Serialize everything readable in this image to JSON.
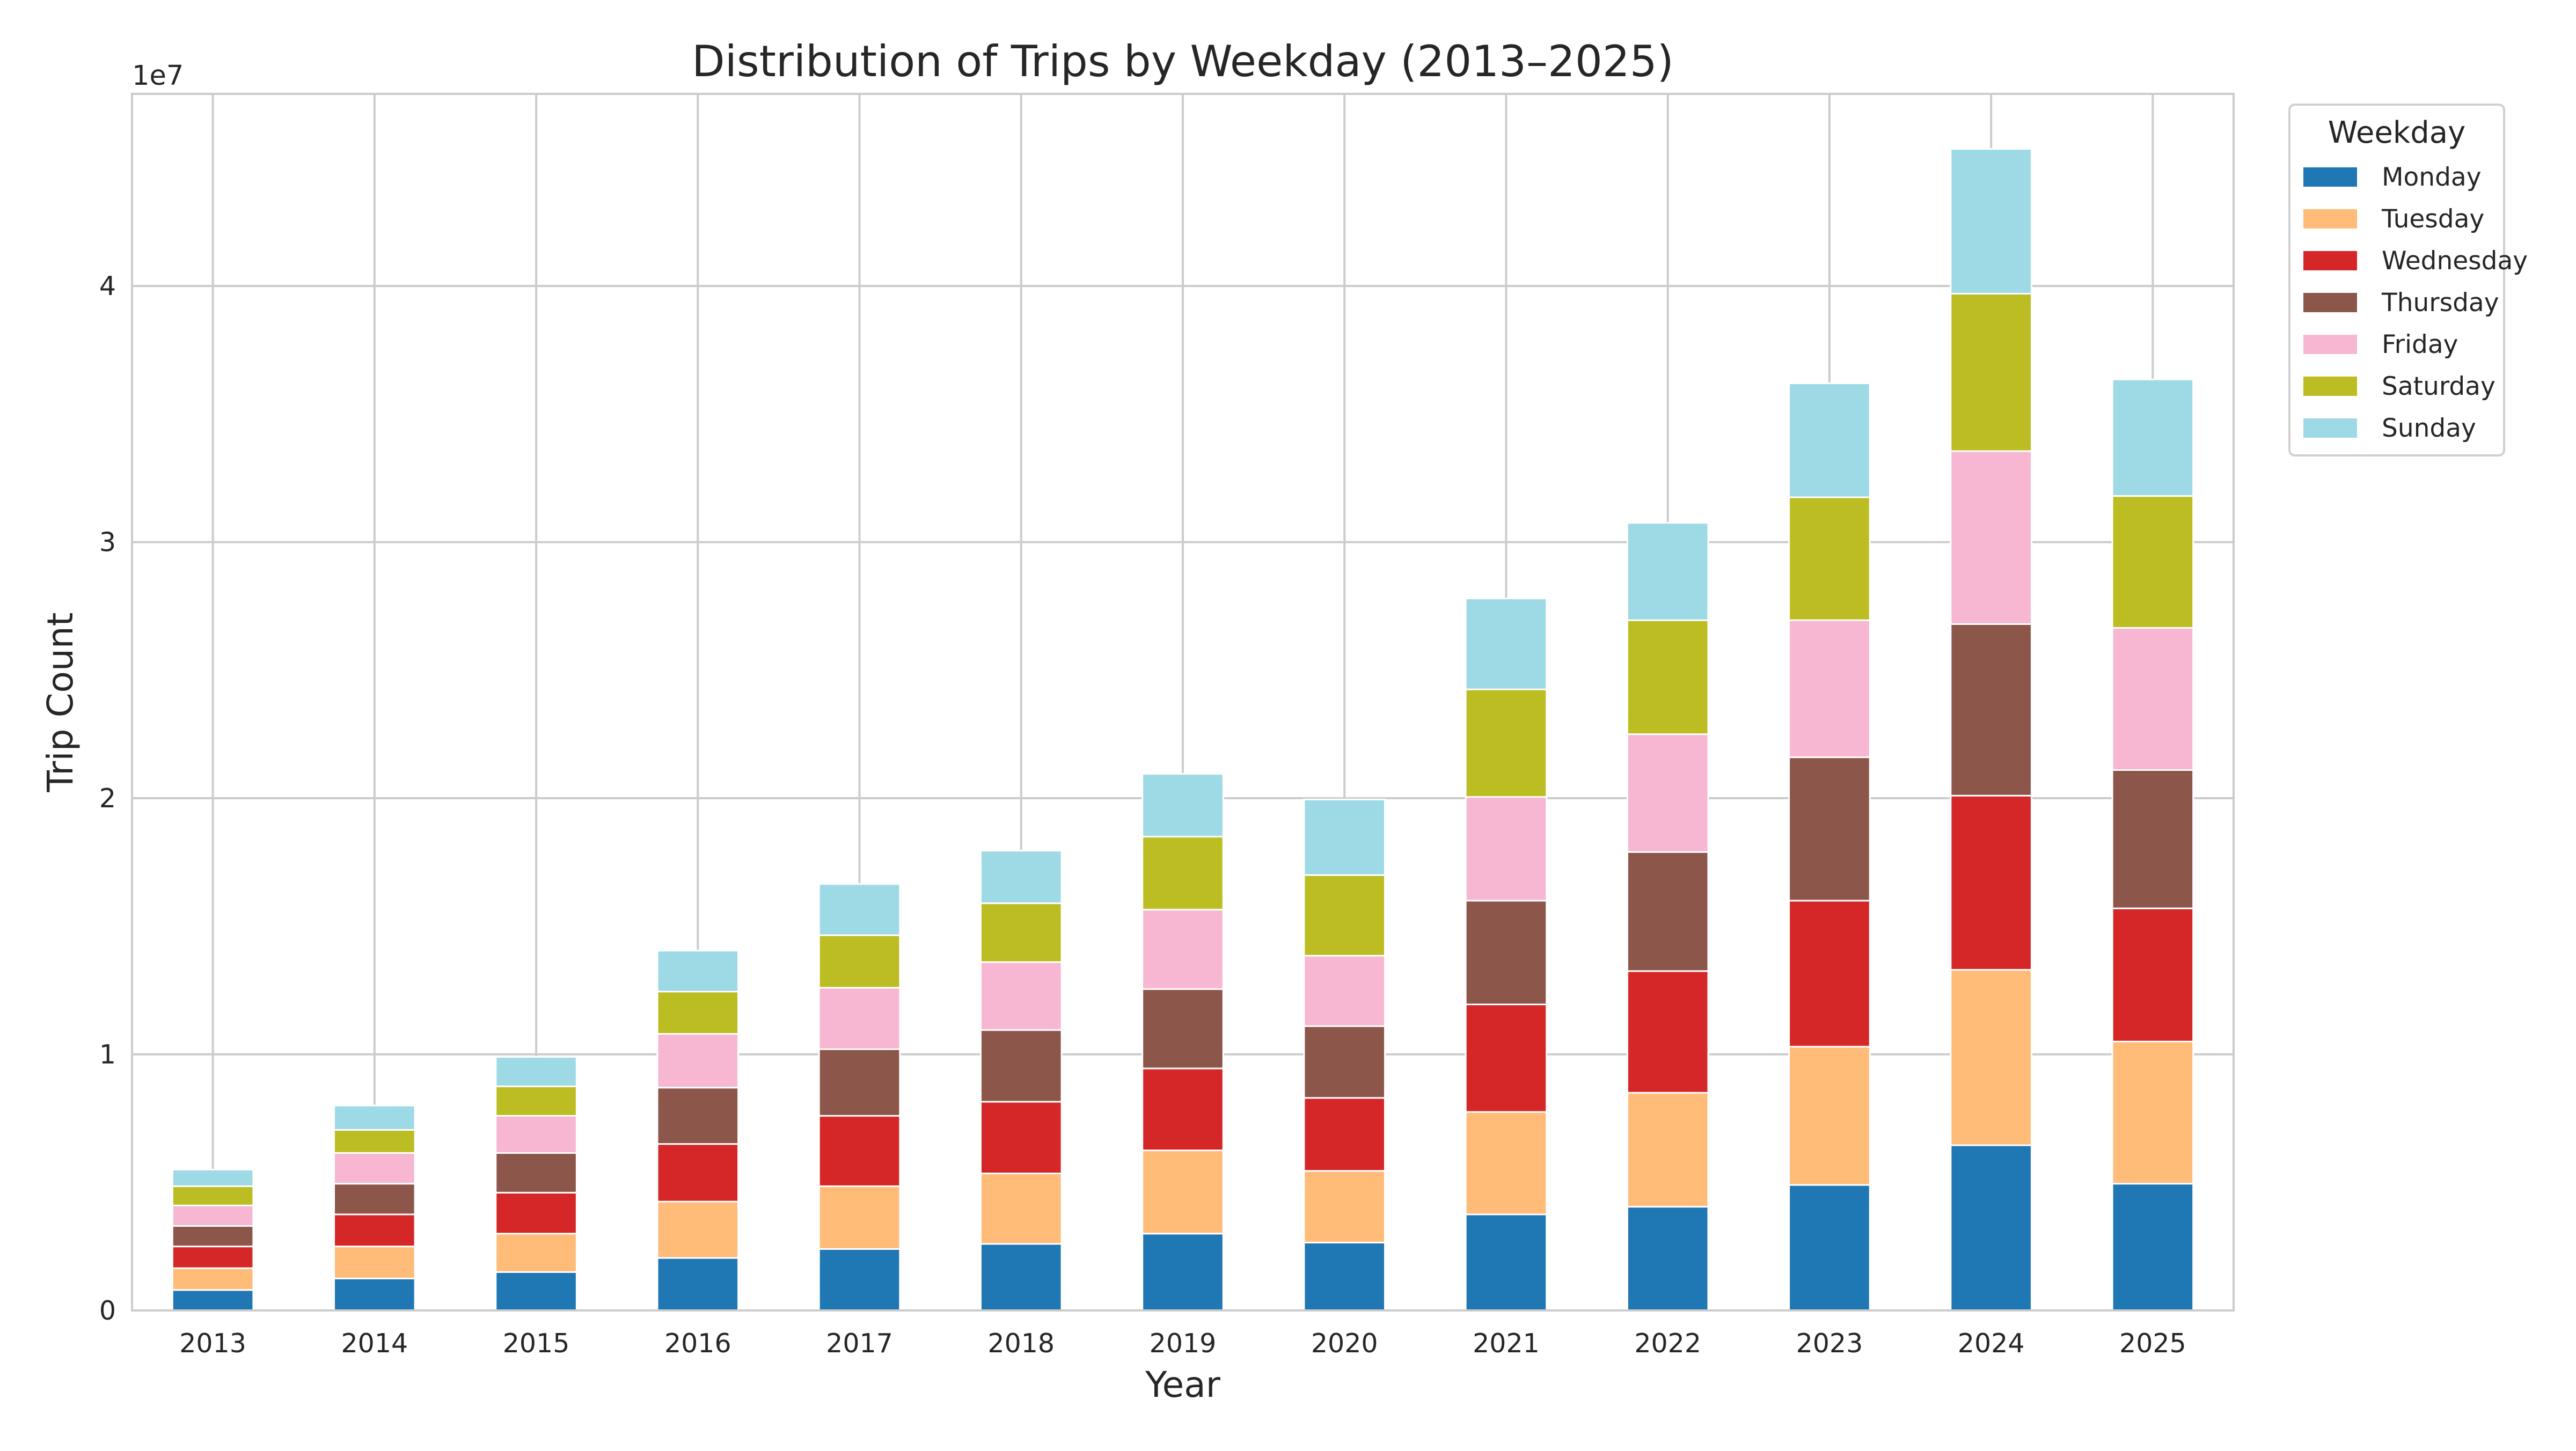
{
  "chart_data": {
    "type": "bar",
    "stacked": true,
    "title": "Distribution of Trips by Weekday (2013–2025)",
    "xlabel": "Year",
    "ylabel": "Trip Count",
    "y_offset_label": "1e7",
    "y_scale": 10000000,
    "ylim": [
      0,
      4.75
    ],
    "yticks": [
      0,
      1,
      2,
      3,
      4
    ],
    "ytick_labels": [
      "0",
      "1",
      "2",
      "3",
      "4"
    ],
    "grid": true,
    "legend_title": "Weekday",
    "legend_position": "outside top-right",
    "categories": [
      "2013",
      "2014",
      "2015",
      "2016",
      "2017",
      "2018",
      "2019",
      "2020",
      "2021",
      "2022",
      "2023",
      "2024",
      "2025"
    ],
    "series": [
      {
        "name": "Monday",
        "color": "#1f77b4",
        "values": [
          0.08,
          0.125,
          0.15,
          0.205,
          0.24,
          0.26,
          0.3,
          0.265,
          0.375,
          0.405,
          0.49,
          0.645,
          0.495
        ]
      },
      {
        "name": "Tuesday",
        "color": "#ffbb78",
        "values": [
          0.085,
          0.125,
          0.15,
          0.22,
          0.245,
          0.275,
          0.325,
          0.28,
          0.4,
          0.445,
          0.54,
          0.685,
          0.555
        ]
      },
      {
        "name": "Wednesday",
        "color": "#d62728",
        "values": [
          0.085,
          0.125,
          0.16,
          0.225,
          0.275,
          0.28,
          0.32,
          0.285,
          0.42,
          0.475,
          0.57,
          0.68,
          0.52
        ]
      },
      {
        "name": "Thursday",
        "color": "#8c564b",
        "values": [
          0.08,
          0.12,
          0.155,
          0.22,
          0.26,
          0.28,
          0.31,
          0.28,
          0.405,
          0.465,
          0.56,
          0.67,
          0.54
        ]
      },
      {
        "name": "Friday",
        "color": "#f7b6d2",
        "values": [
          0.08,
          0.12,
          0.145,
          0.21,
          0.24,
          0.265,
          0.31,
          0.275,
          0.405,
          0.46,
          0.535,
          0.675,
          0.555
        ]
      },
      {
        "name": "Saturday",
        "color": "#bcbd22",
        "values": [
          0.075,
          0.09,
          0.115,
          0.165,
          0.205,
          0.23,
          0.285,
          0.315,
          0.42,
          0.445,
          0.48,
          0.615,
          0.515
        ]
      },
      {
        "name": "Sunday",
        "color": "#9edae5",
        "values": [
          0.065,
          0.095,
          0.115,
          0.16,
          0.2,
          0.205,
          0.245,
          0.295,
          0.355,
          0.38,
          0.445,
          0.565,
          0.455
        ]
      }
    ]
  }
}
